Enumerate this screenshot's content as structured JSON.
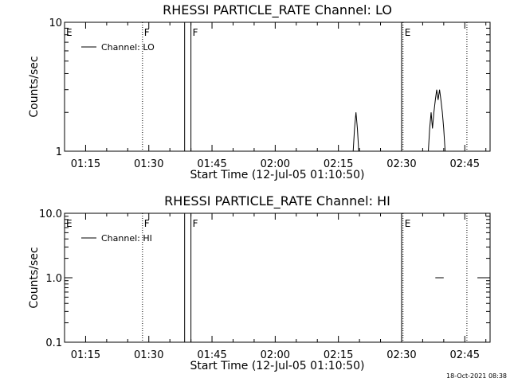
{
  "footer": "18-Oct-2021 08:38",
  "chart_data": [
    {
      "type": "line",
      "title": "RHESSI PARTICLE_RATE Channel: LO",
      "xlabel": "Start Time (12-Jul-05 01:10:50)",
      "ylabel": "Counts/sec",
      "yscale": "log",
      "ylim": [
        1,
        10
      ],
      "y_ticks": [
        1,
        10
      ],
      "y_tick_labels": [
        "1",
        "10"
      ],
      "xlim": [
        "01:10:00",
        "02:51:00"
      ],
      "x_ticks": [
        "01:15",
        "01:30",
        "01:45",
        "02:00",
        "02:15",
        "02:30",
        "02:45"
      ],
      "legend": {
        "label": "Channel: LO",
        "placement": "top-left"
      },
      "markers": [
        {
          "label": "E",
          "time": "01:10:00",
          "style": "none",
          "show_label": true
        },
        {
          "label": "F",
          "time": "01:28:30",
          "style": "dotted",
          "show_label": true
        },
        {
          "label": "F",
          "time": "01:40:00",
          "style": "solid",
          "show_label": true
        },
        {
          "label": "",
          "time": "01:38:30",
          "style": "solid",
          "show_label": false
        },
        {
          "label": "E",
          "time": "02:30:20",
          "style": "dotted",
          "show_label": true
        },
        {
          "label": "",
          "time": "02:30:00",
          "style": "solid",
          "show_label": false
        },
        {
          "label": "",
          "time": "02:45:30",
          "style": "dotted",
          "show_label": false
        }
      ],
      "series": [
        {
          "segments": [
            {
              "x": [
                "02:18:30",
                "02:18:50",
                "02:19:10",
                "02:19:30",
                "02:19:50"
              ],
              "y": [
                1,
                1.5,
                2,
                1.5,
                1
              ]
            },
            {
              "x": [
                "02:36:20",
                "02:36:40",
                "02:37:00",
                "02:37:20",
                "02:37:40",
                "02:38:00",
                "02:38:20",
                "02:38:40",
                "02:39:00",
                "02:39:20",
                "02:39:40",
                "02:40:00",
                "02:40:20",
                "02:40:40"
              ],
              "y": [
                1,
                1.5,
                2,
                1.5,
                2,
                2.5,
                3,
                2.5,
                3,
                2.5,
                2,
                1.5,
                1,
                1
              ]
            }
          ]
        }
      ]
    },
    {
      "type": "line",
      "title": "RHESSI PARTICLE_RATE Channel: HI",
      "xlabel": "Start Time (12-Jul-05 01:10:50)",
      "ylabel": "Counts/sec",
      "yscale": "log",
      "ylim": [
        0.1,
        10
      ],
      "y_ticks": [
        0.1,
        1,
        10
      ],
      "y_tick_labels": [
        "0.1",
        "1.0",
        "10.0"
      ],
      "xlim": [
        "01:10:00",
        "02:51:00"
      ],
      "x_ticks": [
        "01:15",
        "01:30",
        "01:45",
        "02:00",
        "02:15",
        "02:30",
        "02:45"
      ],
      "legend": {
        "label": "Channel: HI",
        "placement": "top-left"
      },
      "markers": [
        {
          "label": "E",
          "time": "01:10:00",
          "style": "none",
          "show_label": true
        },
        {
          "label": "F",
          "time": "01:28:30",
          "style": "dotted",
          "show_label": true
        },
        {
          "label": "F",
          "time": "01:40:00",
          "style": "solid",
          "show_label": true
        },
        {
          "label": "",
          "time": "01:38:30",
          "style": "solid",
          "show_label": false
        },
        {
          "label": "E",
          "time": "02:30:20",
          "style": "dotted",
          "show_label": true
        },
        {
          "label": "",
          "time": "02:30:00",
          "style": "solid",
          "show_label": false
        },
        {
          "label": "",
          "time": "02:45:30",
          "style": "dotted",
          "show_label": false
        }
      ],
      "series": [
        {
          "segments": [
            {
              "x": [
                "02:38:00",
                "02:40:00"
              ],
              "y": [
                1,
                1
              ]
            },
            {
              "x": [
                "02:48:00",
                "02:50:30"
              ],
              "y": [
                1,
                1
              ]
            }
          ]
        }
      ]
    }
  ]
}
